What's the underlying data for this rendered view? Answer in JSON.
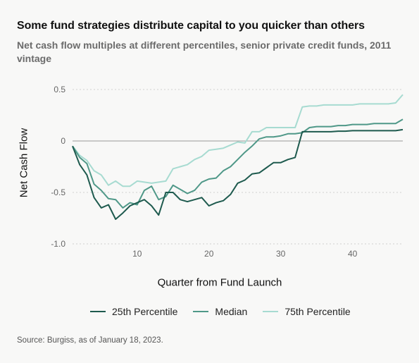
{
  "chart_data": {
    "type": "line",
    "title": "Some fund strategies distribute capital to you quicker than others",
    "subtitle": "Net cash flow multiples at different percentiles, senior private credit funds, 2011 vintage",
    "xlabel": "Quarter from Fund Launch",
    "ylabel": "Net Cash Flow",
    "xlim": [
      1,
      47
    ],
    "ylim": [
      -1.0,
      0.5
    ],
    "x_ticks": [
      10,
      20,
      30,
      40
    ],
    "x_tick_labels": [
      "10",
      "20",
      "30",
      "40"
    ],
    "y_ticks": [
      0.5,
      0,
      -0.5,
      -1.0
    ],
    "y_tick_labels": [
      "0.5",
      "0",
      "-0.5",
      "-1.0"
    ],
    "grid": "horizontal dotted",
    "legend_position": "bottom",
    "x": [
      1,
      2,
      3,
      4,
      5,
      6,
      7,
      8,
      9,
      10,
      11,
      12,
      13,
      14,
      15,
      16,
      17,
      18,
      19,
      20,
      21,
      22,
      23,
      24,
      25,
      26,
      27,
      28,
      29,
      30,
      31,
      32,
      33,
      34,
      35,
      36,
      37,
      38,
      39,
      40,
      41,
      42,
      43,
      44,
      45,
      46,
      47
    ],
    "series": [
      {
        "name": "25th Percentile",
        "color": "#1e5a4e",
        "values": [
          -0.05,
          -0.23,
          -0.33,
          -0.55,
          -0.65,
          -0.62,
          -0.76,
          -0.7,
          -0.63,
          -0.6,
          -0.57,
          -0.63,
          -0.72,
          -0.5,
          -0.5,
          -0.57,
          -0.59,
          -0.57,
          -0.55,
          -0.63,
          -0.6,
          -0.58,
          -0.52,
          -0.41,
          -0.38,
          -0.32,
          -0.31,
          -0.26,
          -0.21,
          -0.21,
          -0.18,
          -0.16,
          0.09,
          0.09,
          0.09,
          0.09,
          0.09,
          0.095,
          0.095,
          0.1,
          0.1,
          0.1,
          0.1,
          0.1,
          0.1,
          0.1,
          0.11
        ]
      },
      {
        "name": "Median",
        "color": "#4f9888",
        "values": [
          -0.05,
          -0.16,
          -0.22,
          -0.42,
          -0.48,
          -0.56,
          -0.57,
          -0.65,
          -0.6,
          -0.62,
          -0.48,
          -0.44,
          -0.57,
          -0.54,
          -0.43,
          -0.47,
          -0.51,
          -0.48,
          -0.4,
          -0.37,
          -0.36,
          -0.29,
          -0.25,
          -0.18,
          -0.11,
          -0.05,
          0.02,
          0.04,
          0.04,
          0.05,
          0.07,
          0.07,
          0.08,
          0.13,
          0.14,
          0.14,
          0.14,
          0.15,
          0.15,
          0.16,
          0.16,
          0.16,
          0.17,
          0.17,
          0.17,
          0.17,
          0.21
        ]
      },
      {
        "name": "75th Percentile",
        "color": "#a7dbd1",
        "values": [
          -0.05,
          -0.14,
          -0.19,
          -0.29,
          -0.33,
          -0.43,
          -0.39,
          -0.44,
          -0.44,
          -0.39,
          -0.4,
          -0.41,
          -0.4,
          -0.39,
          -0.27,
          -0.25,
          -0.23,
          -0.18,
          -0.15,
          -0.09,
          -0.08,
          -0.07,
          -0.04,
          -0.01,
          -0.02,
          0.09,
          0.09,
          0.13,
          0.13,
          0.13,
          0.13,
          0.13,
          0.33,
          0.34,
          0.34,
          0.35,
          0.35,
          0.35,
          0.35,
          0.35,
          0.36,
          0.36,
          0.36,
          0.36,
          0.36,
          0.37,
          0.45
        ]
      }
    ]
  },
  "source": "Source: Burgiss, as of January 18, 2023."
}
